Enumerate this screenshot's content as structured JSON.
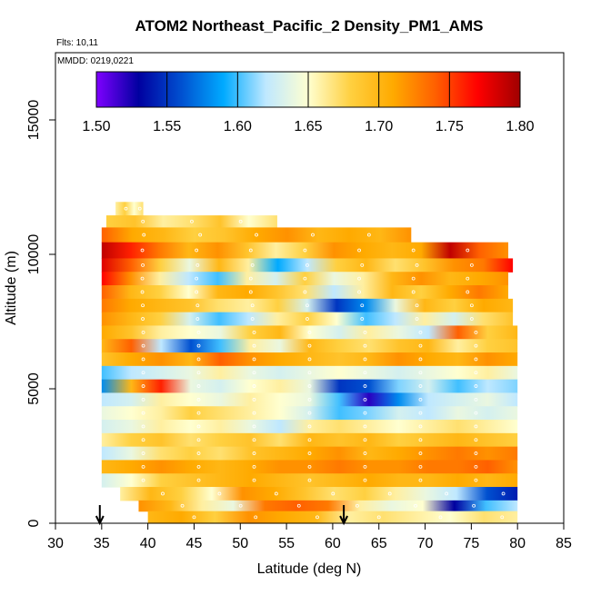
{
  "chart_data": {
    "type": "heatmap",
    "title": "ATOM2 Northeast_Pacific_2 Density_PM1_AMS",
    "flights_label": "Flts: 10,11",
    "dates_label": "MMDD: 0219,0221",
    "xlabel": "Latitude (deg N)",
    "ylabel": "Altitude (m)",
    "xlim": [
      30,
      85
    ],
    "ylim": [
      0,
      17500
    ],
    "x_ticks": [
      30,
      35,
      40,
      45,
      50,
      55,
      60,
      65,
      70,
      75,
      80,
      85
    ],
    "y_ticks": [
      0,
      5000,
      10000,
      15000
    ],
    "colorbar": {
      "min": 1.5,
      "max": 1.8,
      "ticks": [
        "1.50",
        "1.55",
        "1.60",
        "1.65",
        "1.70",
        "1.75",
        "1.80"
      ],
      "colors": [
        "#7f00ff",
        "#0000a0",
        "#0050d0",
        "#00aaff",
        "#bfe8ff",
        "#ffffd0",
        "#ffd040",
        "#ffaa00",
        "#ff6000",
        "#ff0000",
        "#a00000"
      ]
    },
    "profile_markers_lat": [
      34.8,
      61.2
    ],
    "rows": [
      {
        "alt": [
          11450,
          11950
        ],
        "lat": [
          36.5,
          39.5
        ],
        "values": [
          1.66,
          1.68,
          1.65,
          1.67
        ]
      },
      {
        "alt": [
          11000,
          11450
        ],
        "lat": [
          35.5,
          54.0
        ],
        "values": [
          1.68,
          1.69,
          1.66,
          1.67,
          1.69,
          1.65,
          1.67
        ]
      },
      {
        "alt": [
          10450,
          11000
        ],
        "lat": [
          35.0,
          68.5
        ],
        "values": [
          1.74,
          1.71,
          1.7,
          1.68,
          1.69,
          1.71,
          1.72,
          1.7,
          1.71,
          1.7,
          1.72
        ]
      },
      {
        "alt": [
          9850,
          10450
        ],
        "lat": [
          35.0,
          79.0
        ],
        "values": [
          1.79,
          1.76,
          1.73,
          1.7,
          1.72,
          1.69,
          1.66,
          1.68,
          1.72,
          1.71,
          1.7,
          1.71,
          1.79,
          1.74,
          1.72
        ]
      },
      {
        "alt": [
          9350,
          9850
        ],
        "lat": [
          35.0,
          79.5
        ],
        "values": [
          1.78,
          1.74,
          1.68,
          1.64,
          1.7,
          1.66,
          1.59,
          1.62,
          1.68,
          1.7,
          1.67,
          1.69,
          1.72,
          1.73,
          1.77
        ]
      },
      {
        "alt": [
          8850,
          9350
        ],
        "lat": [
          35.0,
          79.0
        ],
        "values": [
          1.77,
          1.72,
          1.66,
          1.62,
          1.6,
          1.66,
          1.63,
          1.68,
          1.64,
          1.66,
          1.7,
          1.72,
          1.7,
          1.71,
          1.72
        ]
      },
      {
        "alt": [
          8350,
          8850
        ],
        "lat": [
          35.0,
          79.0
        ],
        "values": [
          1.74,
          1.7,
          1.68,
          1.65,
          1.7,
          1.71,
          1.69,
          1.67,
          1.62,
          1.66,
          1.7,
          1.68,
          1.71,
          1.73,
          1.71
        ]
      },
      {
        "alt": [
          7850,
          8350
        ],
        "lat": [
          35.0,
          79.5
        ],
        "values": [
          1.73,
          1.71,
          1.7,
          1.69,
          1.67,
          1.66,
          1.68,
          1.63,
          1.55,
          1.58,
          1.64,
          1.7,
          1.68,
          1.71,
          1.7
        ]
      },
      {
        "alt": [
          7350,
          7850
        ],
        "lat": [
          35.0,
          79.5
        ],
        "values": [
          1.72,
          1.7,
          1.68,
          1.63,
          1.6,
          1.62,
          1.66,
          1.68,
          1.65,
          1.6,
          1.62,
          1.66,
          1.63,
          1.67,
          1.69
        ]
      },
      {
        "alt": [
          6850,
          7350
        ],
        "lat": [
          35.0,
          80.0
        ],
        "values": [
          1.71,
          1.69,
          1.66,
          1.65,
          1.64,
          1.68,
          1.7,
          1.65,
          1.63,
          1.66,
          1.64,
          1.62,
          1.74,
          1.68,
          1.7
        ]
      },
      {
        "alt": [
          6350,
          6850
        ],
        "lat": [
          35.0,
          80.0
        ],
        "values": [
          1.7,
          1.74,
          1.62,
          1.56,
          1.6,
          1.66,
          1.64,
          1.7,
          1.68,
          1.67,
          1.69,
          1.7,
          1.66,
          1.68,
          1.69
        ]
      },
      {
        "alt": [
          5850,
          6350
        ],
        "lat": [
          35.0,
          80.0
        ],
        "values": [
          1.69,
          1.71,
          1.72,
          1.7,
          1.74,
          1.72,
          1.71,
          1.7,
          1.69,
          1.7,
          1.72,
          1.71,
          1.7,
          1.72,
          1.71
        ]
      },
      {
        "alt": [
          5350,
          5850
        ],
        "lat": [
          35.0,
          80.0
        ],
        "values": [
          1.6,
          1.62,
          1.63,
          1.64,
          1.66,
          1.64,
          1.63,
          1.64,
          1.65,
          1.64,
          1.63,
          1.64,
          1.65,
          1.66,
          1.64
        ]
      },
      {
        "alt": [
          4850,
          5350
        ],
        "lat": [
          35.0,
          80.0
        ],
        "values": [
          1.58,
          1.7,
          1.76,
          1.64,
          1.63,
          1.65,
          1.66,
          1.64,
          1.55,
          1.56,
          1.61,
          1.63,
          1.6,
          1.62,
          1.61
        ]
      },
      {
        "alt": [
          4350,
          4850
        ],
        "lat": [
          35.0,
          80.0
        ],
        "values": [
          1.62,
          1.63,
          1.66,
          1.65,
          1.64,
          1.66,
          1.65,
          1.64,
          1.6,
          1.52,
          1.58,
          1.62,
          1.63,
          1.64,
          1.62
        ]
      },
      {
        "alt": [
          3850,
          4350
        ],
        "lat": [
          35.0,
          80.0
        ],
        "values": [
          1.64,
          1.65,
          1.66,
          1.68,
          1.67,
          1.66,
          1.65,
          1.63,
          1.6,
          1.61,
          1.63,
          1.62,
          1.64,
          1.63,
          1.64
        ]
      },
      {
        "alt": [
          3350,
          3850
        ],
        "lat": [
          35.0,
          80.0
        ],
        "values": [
          1.63,
          1.64,
          1.66,
          1.65,
          1.66,
          1.64,
          1.62,
          1.66,
          1.67,
          1.66,
          1.65,
          1.66,
          1.67,
          1.66,
          1.65
        ]
      },
      {
        "alt": [
          2850,
          3350
        ],
        "lat": [
          35.0,
          80.0
        ],
        "values": [
          1.66,
          1.68,
          1.69,
          1.67,
          1.68,
          1.69,
          1.67,
          1.7,
          1.69,
          1.7,
          1.68,
          1.69,
          1.7,
          1.69,
          1.68
        ]
      },
      {
        "alt": [
          2350,
          2850
        ],
        "lat": [
          35.0,
          80.0
        ],
        "values": [
          1.62,
          1.64,
          1.67,
          1.68,
          1.67,
          1.69,
          1.7,
          1.71,
          1.72,
          1.7,
          1.71,
          1.72,
          1.73,
          1.72,
          1.73
        ]
      },
      {
        "alt": [
          1850,
          2350
        ],
        "lat": [
          35.0,
          80.0
        ],
        "values": [
          1.7,
          1.71,
          1.72,
          1.71,
          1.7,
          1.71,
          1.72,
          1.72,
          1.73,
          1.72,
          1.72,
          1.73,
          1.73,
          1.74,
          1.72
        ]
      },
      {
        "alt": [
          1350,
          1850
        ],
        "lat": [
          35.0,
          80.0
        ],
        "values": [
          1.63,
          1.65,
          1.68,
          1.69,
          1.7,
          1.71,
          1.7,
          1.69,
          1.7,
          1.71,
          1.7,
          1.7,
          1.71,
          1.7,
          1.71
        ]
      },
      {
        "alt": [
          850,
          1350
        ],
        "lat": [
          37.0,
          80.0
        ],
        "values": [
          1.66,
          1.7,
          1.68,
          1.65,
          1.72,
          1.71,
          1.69,
          1.67,
          1.68,
          1.66,
          1.64,
          1.62,
          1.56,
          1.54
        ]
      },
      {
        "alt": [
          450,
          850
        ],
        "lat": [
          39.0,
          80.0
        ],
        "values": [
          1.72,
          1.7,
          1.66,
          1.64,
          1.73,
          1.74,
          1.73,
          1.66,
          1.64,
          1.65,
          1.53,
          1.6,
          1.62
        ]
      },
      {
        "alt": [
          0,
          450
        ],
        "lat": [
          40.0,
          80.0
        ],
        "values": [
          1.7,
          1.71,
          1.68,
          1.72,
          1.71,
          1.7,
          1.66,
          1.67,
          1.66,
          1.65,
          1.67,
          1.66
        ]
      }
    ]
  }
}
